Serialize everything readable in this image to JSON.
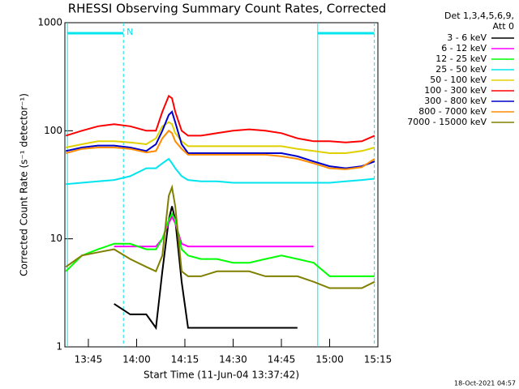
{
  "chart_data": {
    "type": "line",
    "title": "RHESSI Observing Summary Count Rates, Corrected",
    "x_label": "Start Time (11-Jun-04 13:37:42)",
    "y_label": "Corrected Count Rate (s⁻¹ detector⁻¹)",
    "legend_header": [
      "Det 1,3,4,5,6,9,",
      "Att 0"
    ],
    "footer": "18-Oct-2021 04:57",
    "log_y": true,
    "legend": "right",
    "xlim": [
      37.7,
      135
    ],
    "xticks": [
      {
        "value": 45,
        "label": "13:45"
      },
      {
        "value": 60,
        "label": "14:00"
      },
      {
        "value": 75,
        "label": "14:15"
      },
      {
        "value": 90,
        "label": "14:30"
      },
      {
        "value": 105,
        "label": "14:45"
      },
      {
        "value": 120,
        "label": "15:00"
      },
      {
        "value": 135,
        "label": "15:15"
      }
    ],
    "ylim": [
      1,
      1000
    ],
    "yticks": [
      1,
      10,
      100,
      1000
    ],
    "night": [
      [
        38.5,
        55.9
      ],
      [
        116.3,
        133.9
      ]
    ],
    "night_label": "N",
    "night_color": "#00e5ee",
    "x": [
      38,
      43,
      48,
      53,
      58,
      63,
      66,
      68,
      70,
      71,
      72,
      74,
      76,
      80,
      85,
      90,
      95,
      100,
      105,
      110,
      115,
      120,
      125,
      130,
      134
    ],
    "series": [
      {
        "name": "3 - 6 keV",
        "color": "#000000",
        "values": [
          null,
          null,
          null,
          2.5,
          2,
          2,
          1.5,
          5,
          15,
          20,
          15,
          4,
          1.5,
          1.5,
          1.5,
          1.5,
          1.5,
          1.5,
          1.5,
          1.5,
          null,
          null,
          null,
          null,
          null
        ]
      },
      {
        "name": "6 - 12 keV",
        "color": "#ff00ff",
        "values": [
          null,
          null,
          null,
          8.5,
          8.5,
          8.5,
          8.5,
          10,
          14,
          16,
          14,
          9,
          8.5,
          8.5,
          8.5,
          8.5,
          8.5,
          8.5,
          8.5,
          8.5,
          8.5,
          null,
          null,
          null,
          null
        ]
      },
      {
        "name": "12 - 25 keV",
        "color": "#00ff00",
        "values": [
          5,
          7,
          8,
          9,
          9,
          8,
          8,
          10,
          15,
          17,
          15,
          8,
          7,
          6.5,
          6.5,
          6,
          6,
          6.5,
          7,
          6.5,
          6,
          4.5,
          4.5,
          4.5,
          4.5
        ]
      },
      {
        "name": "25 - 50 keV",
        "color": "#00e5ee",
        "values": [
          32,
          33,
          34,
          35,
          38,
          45,
          45,
          50,
          55,
          50,
          45,
          38,
          35,
          34,
          34,
          33,
          33,
          33,
          33,
          33,
          33,
          33,
          34,
          35,
          36
        ]
      },
      {
        "name": "50 - 100 keV",
        "color": "#e0d000",
        "values": [
          70,
          75,
          80,
          80,
          78,
          75,
          85,
          110,
          120,
          115,
          95,
          80,
          72,
          72,
          72,
          72,
          72,
          72,
          72,
          68,
          65,
          62,
          62,
          65,
          70
        ]
      },
      {
        "name": "100 - 300 keV",
        "color": "#ff0000",
        "values": [
          90,
          100,
          110,
          115,
          110,
          100,
          100,
          150,
          210,
          200,
          150,
          100,
          90,
          90,
          95,
          100,
          103,
          100,
          95,
          85,
          80,
          80,
          78,
          80,
          90
        ]
      },
      {
        "name": "300 - 800 keV",
        "color": "#0000cc",
        "values": [
          65,
          70,
          73,
          73,
          70,
          65,
          75,
          100,
          140,
          150,
          120,
          75,
          62,
          62,
          62,
          62,
          62,
          62,
          62,
          58,
          52,
          47,
          45,
          47,
          52
        ]
      },
      {
        "name": "800 - 7000 keV",
        "color": "#ff8c00",
        "values": [
          62,
          68,
          70,
          70,
          68,
          63,
          65,
          85,
          100,
          95,
          80,
          68,
          60,
          60,
          60,
          60,
          60,
          60,
          58,
          55,
          50,
          45,
          44,
          46,
          55
        ]
      },
      {
        "name": "7000 - 15000 keV",
        "color": "#808000",
        "values": [
          5.5,
          7,
          7.5,
          8,
          6.5,
          5.5,
          5,
          7,
          25,
          30,
          20,
          5,
          4.5,
          4.5,
          5,
          5,
          5,
          4.5,
          4.5,
          4.5,
          4,
          3.5,
          3.5,
          3.5,
          4
        ]
      }
    ]
  }
}
